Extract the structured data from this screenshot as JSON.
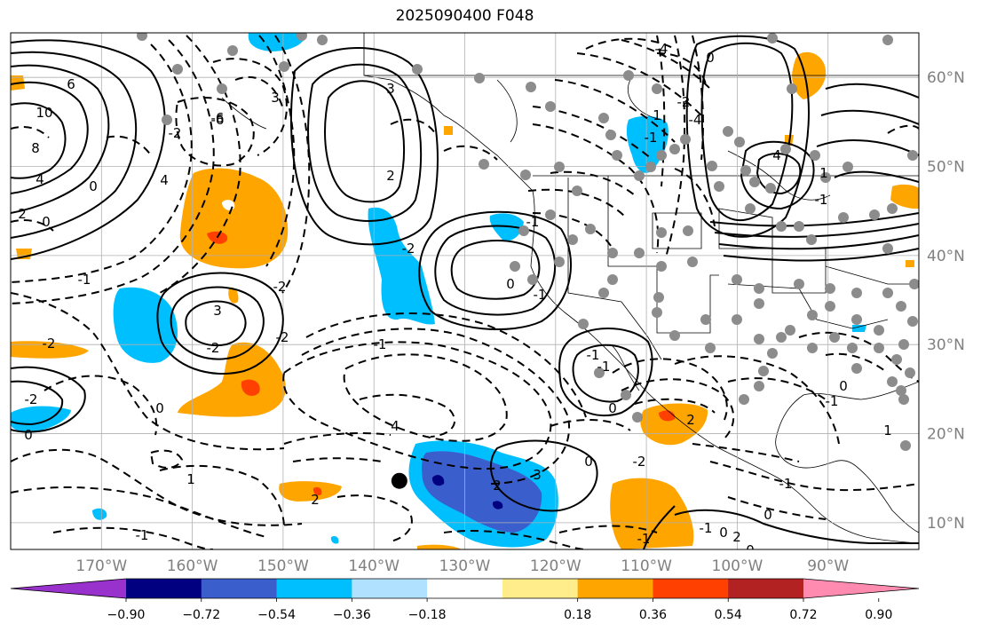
{
  "title": "2025090400 F048",
  "map": {
    "projection": "PlateCarree",
    "lon_range": [
      -180,
      -80
    ],
    "lat_range": [
      7,
      65
    ],
    "gridlines": true,
    "lon_labels": [
      "170°W",
      "160°W",
      "150°W",
      "140°W",
      "130°W",
      "120°W",
      "110°W",
      "100°W",
      "90°W"
    ],
    "lat_labels": [
      "60°N",
      "50°N",
      "40°N",
      "30°N",
      "20°N",
      "10°N"
    ],
    "contour_labels": [
      "6",
      "10",
      "8",
      "4",
      "2",
      "0",
      "3",
      "3",
      "-6",
      "-2",
      "4",
      "0",
      "-1",
      "-2",
      "-2",
      "3",
      "2",
      "-2",
      "0",
      "-1",
      "-2",
      "-2",
      "0",
      "-1",
      "4",
      "1",
      "2",
      "-1",
      "0",
      "-2",
      "-1",
      "-1",
      "-1",
      "0",
      "2",
      "3",
      "-4",
      "0",
      "-2",
      "-4",
      "1",
      "-1",
      "2",
      "-6",
      "0",
      "-2",
      "0",
      "-1",
      "-1",
      "1",
      "0",
      "-1",
      "2",
      "0",
      "4",
      "1",
      "-1",
      "0",
      "-1"
    ],
    "marker": {
      "type": "black-dot",
      "lon": -137.2,
      "lat": 14.7
    },
    "stations_color": "#8c8c8c"
  },
  "colorbar": {
    "colors": [
      "#9932cc",
      "#000080",
      "#3a5fcd",
      "#00bfff",
      "#b0e2ff",
      "#ffffff",
      "#ffec8b",
      "#ffa500",
      "#ff4000",
      "#b22222",
      "#ff8bb0"
    ],
    "tick_labels": [
      "−0.90",
      "−0.72",
      "−0.54",
      "−0.36",
      "−0.18",
      "0.18",
      "0.36",
      "0.54",
      "0.72",
      "0.90"
    ]
  }
}
